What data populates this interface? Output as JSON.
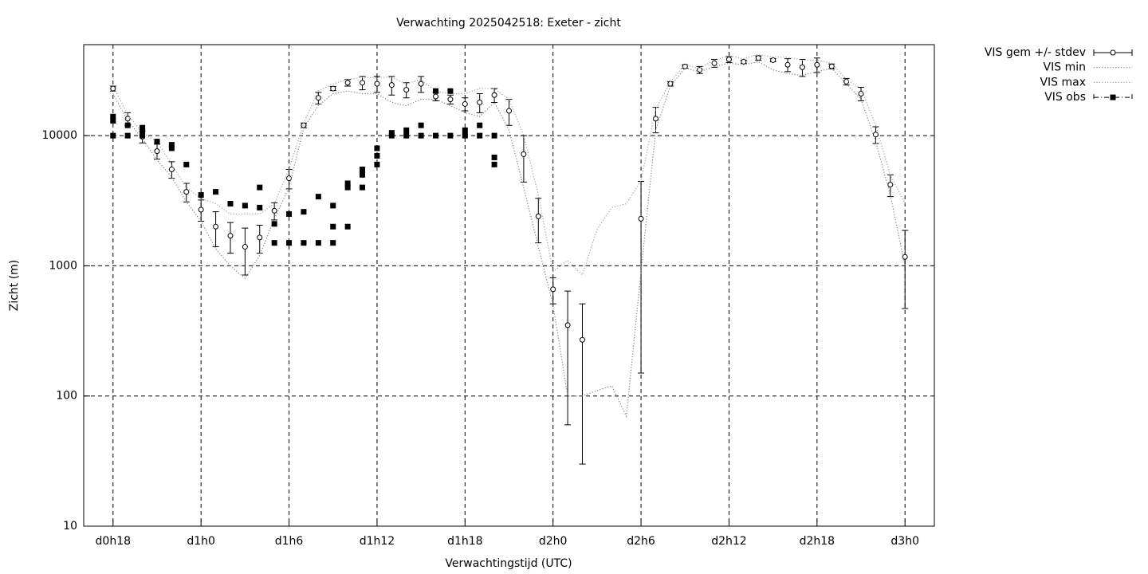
{
  "chart_data": {
    "type": "line",
    "title": "Verwachting 2025042518: Exeter - zicht",
    "xlabel": "Verwachtingstijd (UTC)",
    "ylabel": "Zicht (m)",
    "log_y": true,
    "grid": true,
    "legend": "outside-top-right",
    "xlim": [
      16,
      74
    ],
    "ylim": [
      10,
      50000
    ],
    "xticks": [
      {
        "value": 18,
        "label": "d0h18"
      },
      {
        "value": 24,
        "label": "d1h0"
      },
      {
        "value": 30,
        "label": "d1h6"
      },
      {
        "value": 36,
        "label": "d1h12"
      },
      {
        "value": 42,
        "label": "d1h18"
      },
      {
        "value": 48,
        "label": "d2h0"
      },
      {
        "value": 54,
        "label": "d2h6"
      },
      {
        "value": 60,
        "label": "d2h12"
      },
      {
        "value": 66,
        "label": "d2h18"
      },
      {
        "value": 72,
        "label": "d3h0"
      }
    ],
    "yticks": [
      10,
      100,
      1000,
      10000
    ],
    "x": [
      18,
      19,
      20,
      21,
      22,
      23,
      24,
      25,
      26,
      27,
      28,
      29,
      30,
      31,
      32,
      33,
      34,
      35,
      36,
      37,
      38,
      39,
      40,
      41,
      42,
      43,
      44,
      45,
      46,
      47,
      48,
      49,
      50,
      51,
      52,
      53,
      54,
      55,
      56,
      57,
      58,
      59,
      60,
      61,
      62,
      63,
      64,
      65,
      66,
      67,
      68,
      69,
      70,
      71,
      72
    ],
    "series": [
      {
        "name": "VIS gem +/- stdev",
        "style": "errorbar",
        "color": "#000000",
        "values": [
          23000,
          13500,
          9800,
          7600,
          5500,
          3700,
          2700,
          2000,
          1700,
          1400,
          1650,
          2650,
          4700,
          12000,
          19500,
          23000,
          25500,
          25500,
          25000,
          24500,
          22500,
          25000,
          20000,
          19000,
          17500,
          18000,
          20500,
          15500,
          7200,
          2400,
          660,
          350,
          270,
          null,
          null,
          null,
          2300,
          13500,
          25000,
          34000,
          32000,
          36000,
          38500,
          37000,
          39500,
          38000,
          35000,
          33500,
          35000,
          34000,
          26000,
          21000,
          10200,
          4200,
          1170
        ],
        "errors": [
          1000,
          1500,
          1000,
          1000,
          800,
          600,
          500,
          600,
          450,
          550,
          400,
          400,
          800,
          500,
          2000,
          800,
          1500,
          3000,
          3500,
          4000,
          3000,
          3500,
          1500,
          1500,
          2000,
          3000,
          2500,
          3500,
          2800,
          900,
          150,
          290,
          240,
          null,
          null,
          null,
          2150,
          3000,
          1000,
          1000,
          2000,
          2500,
          2000,
          1000,
          1500,
          1000,
          4000,
          5000,
          4500,
          1500,
          1500,
          2500,
          1500,
          800,
          700
        ]
      },
      {
        "name": "VIS min",
        "style": "dotted",
        "color": "#808080",
        "values": [
          21000,
          13000,
          9500,
          6500,
          4800,
          3100,
          2200,
          1350,
          1000,
          800,
          1200,
          2300,
          4000,
          11500,
          17000,
          21000,
          22000,
          21000,
          21000,
          18000,
          17000,
          19000,
          19000,
          17000,
          15000,
          14000,
          18000,
          11000,
          4000,
          1400,
          500,
          100,
          100,
          110,
          120,
          70,
          900,
          11000,
          24000,
          33000,
          31000,
          34000,
          36000,
          35000,
          37000,
          32000,
          30000,
          29000,
          31000,
          33000,
          25000,
          19000,
          9000,
          3500,
          1000
        ]
      },
      {
        "name": "VIS max",
        "style": "dotted",
        "color": "#a0a0a0",
        "values": [
          24000,
          14500,
          10500,
          9000,
          6000,
          4000,
          3300,
          3000,
          2500,
          2500,
          2500,
          3000,
          5500,
          12500,
          22000,
          25000,
          27000,
          28000,
          28000,
          28000,
          25000,
          27000,
          22000,
          21000,
          21000,
          23000,
          23000,
          19000,
          10000,
          3500,
          900,
          1100,
          850,
          1900,
          2800,
          3000,
          4500,
          16000,
          26000,
          35000,
          33000,
          38000,
          41000,
          39000,
          42000,
          40000,
          40000,
          38000,
          38000,
          36000,
          27000,
          23000,
          12000,
          5000,
          3000
        ]
      },
      {
        "name": "VIS obs",
        "style": "points",
        "color": "#000000",
        "x": [
          18,
          18,
          18,
          19,
          19,
          20,
          20,
          20,
          21,
          22,
          22,
          23,
          24,
          25,
          26,
          27,
          28,
          28,
          29,
          29,
          30,
          30,
          31,
          31,
          32,
          32,
          33,
          33,
          33,
          34,
          34,
          34,
          35,
          35,
          35,
          36,
          36,
          36,
          37,
          37,
          38,
          38,
          39,
          39,
          40,
          40,
          41,
          41,
          42,
          42,
          43,
          43,
          44,
          44,
          44
        ],
        "values": [
          10000,
          13000,
          14000,
          10000,
          12000,
          10000,
          11000,
          11500,
          9000,
          8000,
          8500,
          6000,
          3500,
          3700,
          3000,
          2900,
          2800,
          4000,
          2100,
          1500,
          2500,
          1500,
          2600,
          1500,
          3400,
          1500,
          2900,
          2000,
          1500,
          4000,
          4300,
          2000,
          4000,
          5000,
          5500,
          6000,
          7000,
          8000,
          10000,
          10500,
          10000,
          11000,
          10000,
          12000,
          10000,
          22000,
          10000,
          22000,
          10000,
          11000,
          10000,
          12000,
          10000,
          6000,
          6800
        ]
      }
    ]
  }
}
